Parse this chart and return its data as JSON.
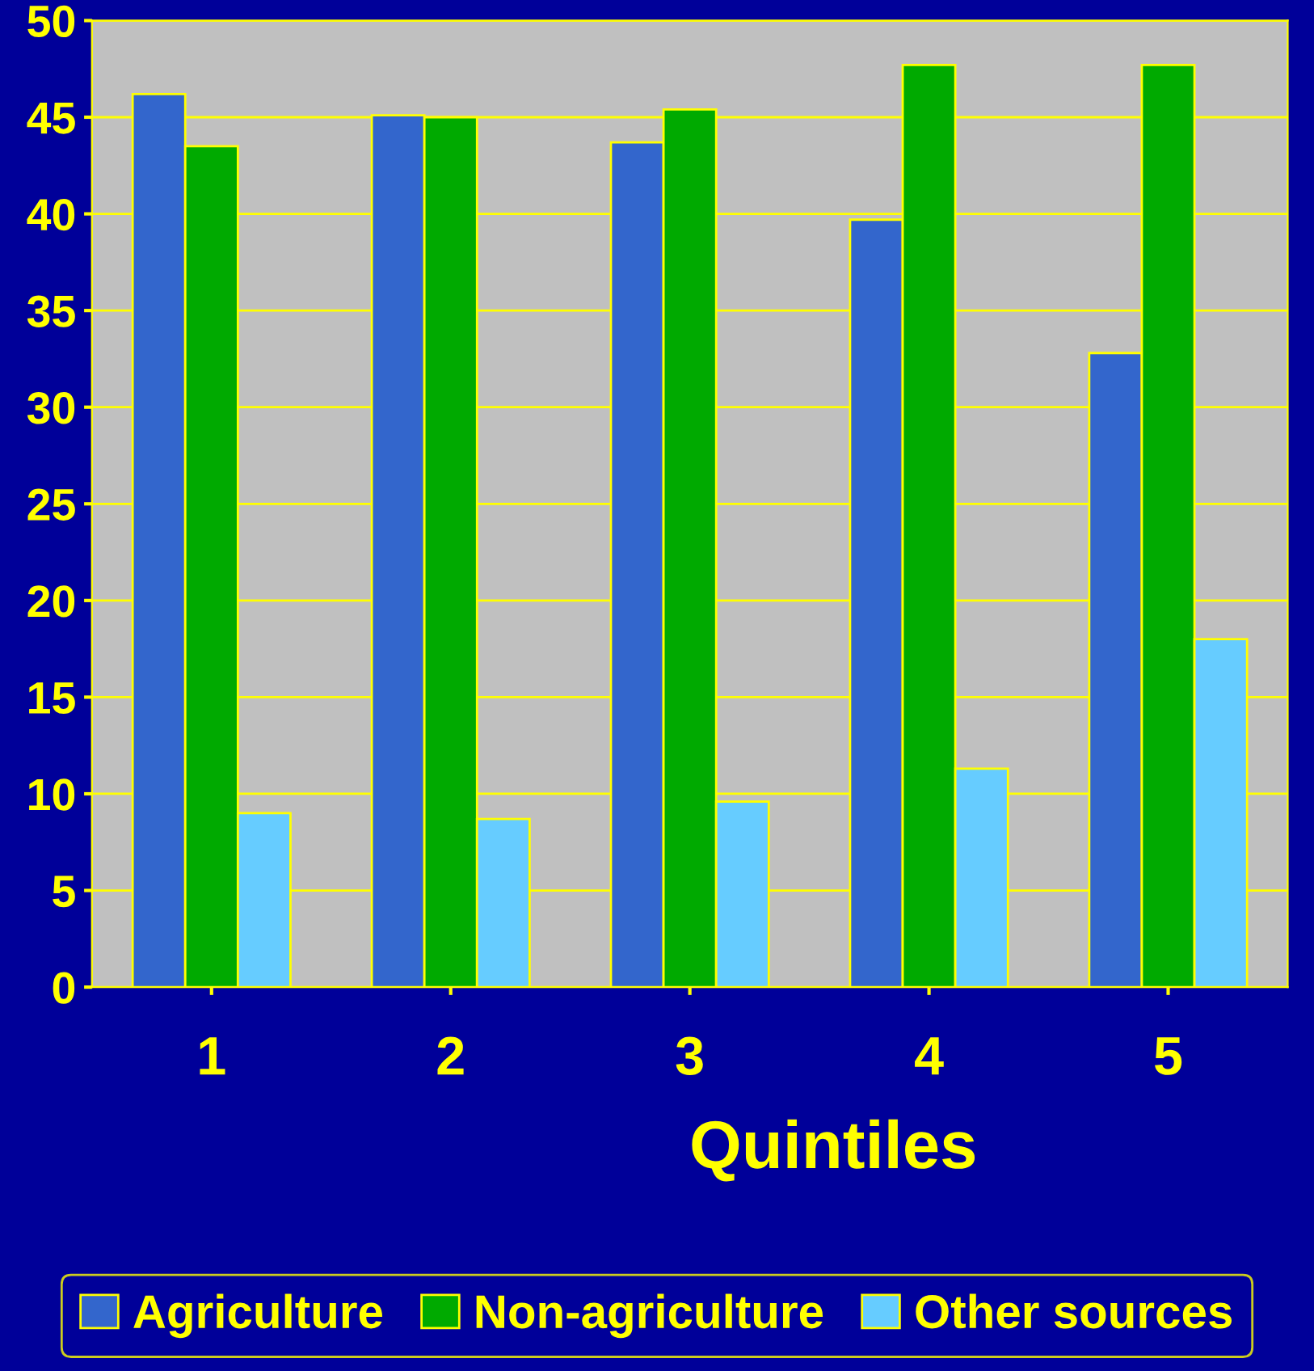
{
  "chart_data": {
    "type": "bar",
    "xlabel": "Quintiles",
    "categories": [
      "1",
      "2",
      "3",
      "4",
      "5"
    ],
    "series": [
      {
        "name": "Agriculture",
        "color": "#3366cc",
        "values": [
          46.2,
          45.1,
          43.7,
          39.7,
          32.8
        ]
      },
      {
        "name": "Non-agriculture",
        "color": "#00aa00",
        "values": [
          43.5,
          45.0,
          45.4,
          47.7,
          47.7
        ]
      },
      {
        "name": "Other sources",
        "color": "#66ccff",
        "values": [
          9.0,
          8.7,
          9.6,
          11.3,
          18.0
        ]
      }
    ],
    "ylim": [
      0,
      50
    ],
    "yticks": [
      0,
      5,
      10,
      15,
      20,
      25,
      30,
      35,
      40,
      45,
      50
    ],
    "grid": "y",
    "legend": "bottom"
  }
}
